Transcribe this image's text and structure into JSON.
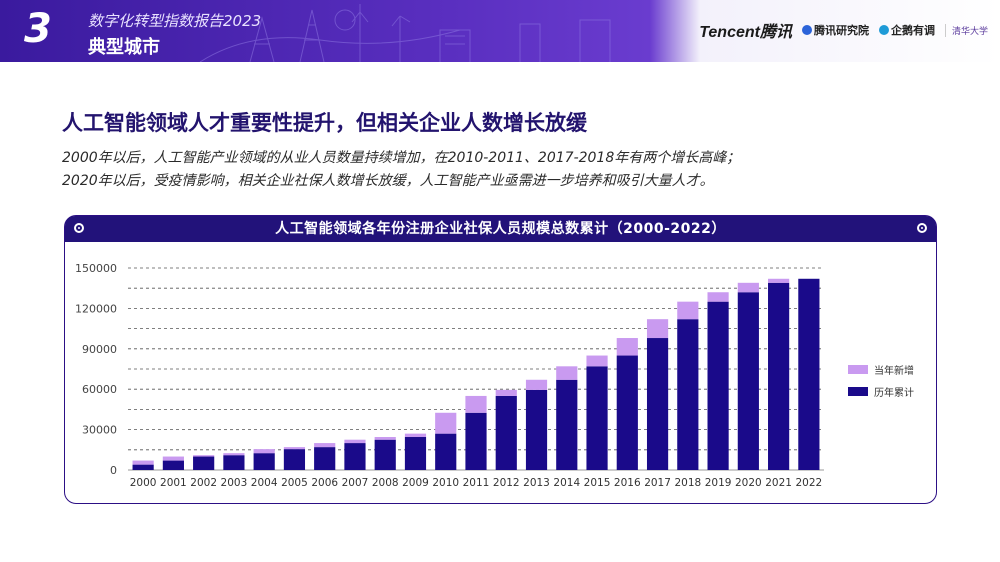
{
  "header": {
    "section_number": "3",
    "report_title": "数字化转型指数报告2023",
    "section_title": "典型城市",
    "logos": [
      "Tencent腾讯",
      "腾讯研究院",
      "企鹅有调",
      "清华大学"
    ]
  },
  "headline": "人工智能领域人才重要性提升，但相关企业人数增长放缓",
  "lead_lines": [
    "2000年以后，人工智能产业领域的从业人员数量持续增加，在2010-2011、2017-2018年有两个增长高峰；",
    "2020年以后，受疫情影响，相关企业社保人数增长放缓，人工智能产业亟需进一步培养和吸引大量人才。"
  ],
  "colors": {
    "cumulative": "#1a0a8a",
    "new": "#c99af0",
    "header_bg": "#22127a",
    "accent": "#3a1a9e"
  },
  "chart_data": {
    "type": "bar",
    "title": "人工智能领域各年份注册企业社保人员规模总数累计（2000-2022）",
    "categories": [
      "2000",
      "2001",
      "2002",
      "2003",
      "2004",
      "2005",
      "2006",
      "2007",
      "2008",
      "2009",
      "2010",
      "2011",
      "2012",
      "2013",
      "2014",
      "2015",
      "2016",
      "2017",
      "2018",
      "2019",
      "2020",
      "2021",
      "2022"
    ],
    "series": [
      {
        "name": "历年累计",
        "values": [
          4000,
          7000,
          10000,
          11000,
          12500,
          15500,
          17000,
          20000,
          22500,
          24500,
          27000,
          42500,
          55000,
          59500,
          67000,
          77000,
          85000,
          98000,
          112000,
          125000,
          132000,
          139000,
          142000
        ]
      },
      {
        "name": "当年新增",
        "values": [
          3000,
          3000,
          1000,
          1500,
          3000,
          1500,
          3000,
          2500,
          2000,
          2500,
          15500,
          12500,
          4500,
          7500,
          10000,
          8000,
          13000,
          14000,
          13000,
          7000,
          7000,
          3000,
          0
        ]
      }
    ],
    "stacked": true,
    "yticks": [
      "0",
      "30000",
      "60000",
      "90000",
      "120000",
      "150000"
    ],
    "ylim": [
      0,
      150000
    ],
    "legend": "right",
    "grid": "dashed horizontal"
  }
}
